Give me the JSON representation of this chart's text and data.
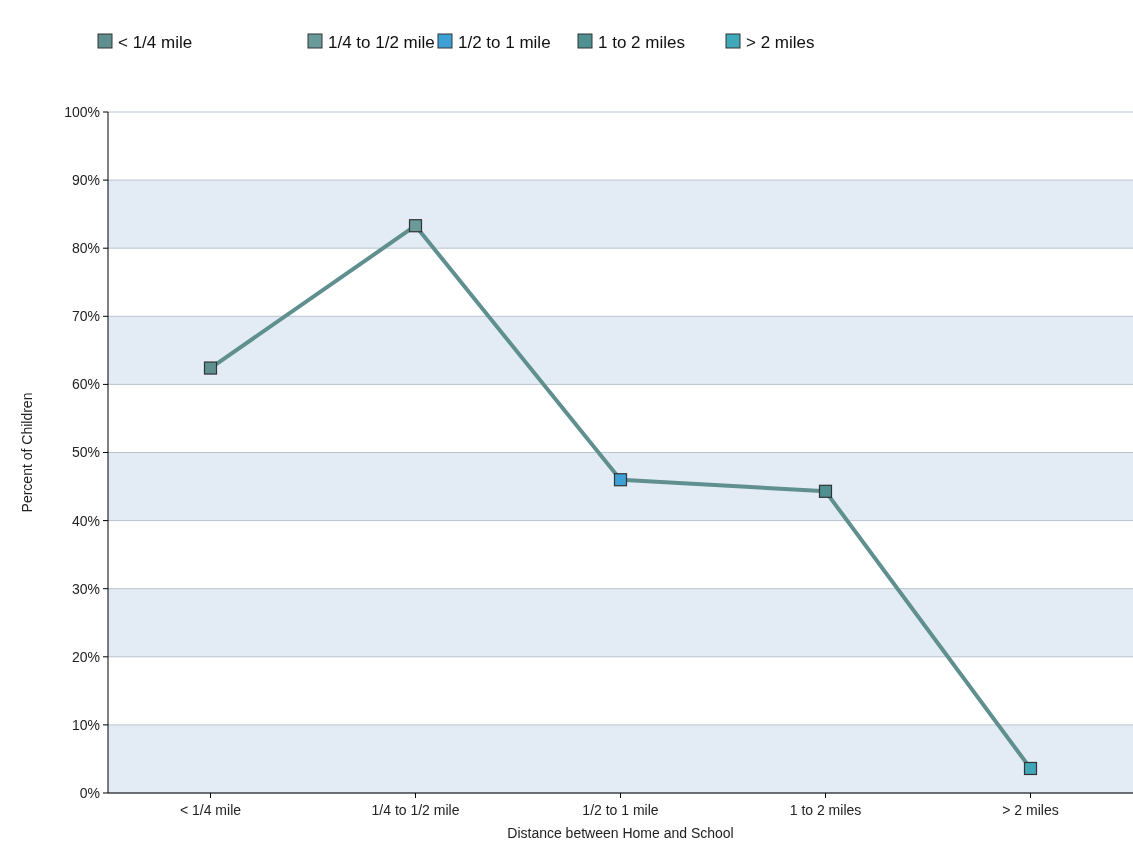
{
  "chart_data": {
    "type": "line",
    "xlabel": "Distance between Home and School",
    "ylabel": "Percent of Children",
    "categories": [
      "< 1/4 mile",
      "1/4 to 1/2 mile",
      "1/2 to 1 mile",
      "1 to 2 miles",
      "> 2 miles"
    ],
    "series": [
      {
        "color": "#5f8f8f",
        "values": [
          62.4,
          83.3,
          46.0,
          44.3,
          3.6
        ],
        "colors": [
          "#5f8f8f",
          "#6a9a9a",
          "#3fa0d8",
          "#4f9090",
          "#40a8b8"
        ]
      }
    ],
    "ylim": [
      0,
      100
    ],
    "yticks": [
      {
        "value": 0,
        "label": "0%"
      },
      {
        "value": 10,
        "label": "10%"
      },
      {
        "value": 20,
        "label": "20%"
      },
      {
        "value": 30,
        "label": "30%"
      },
      {
        "value": 40,
        "label": "40%"
      },
      {
        "value": 50,
        "label": "50%"
      },
      {
        "value": 60,
        "label": "60%"
      },
      {
        "value": 70,
        "label": "70%"
      },
      {
        "value": 80,
        "label": "80%"
      },
      {
        "value": 90,
        "label": "90%"
      },
      {
        "value": 100,
        "label": "100%"
      }
    ],
    "grid": "y",
    "marker": "square",
    "line_style": "solid"
  }
}
